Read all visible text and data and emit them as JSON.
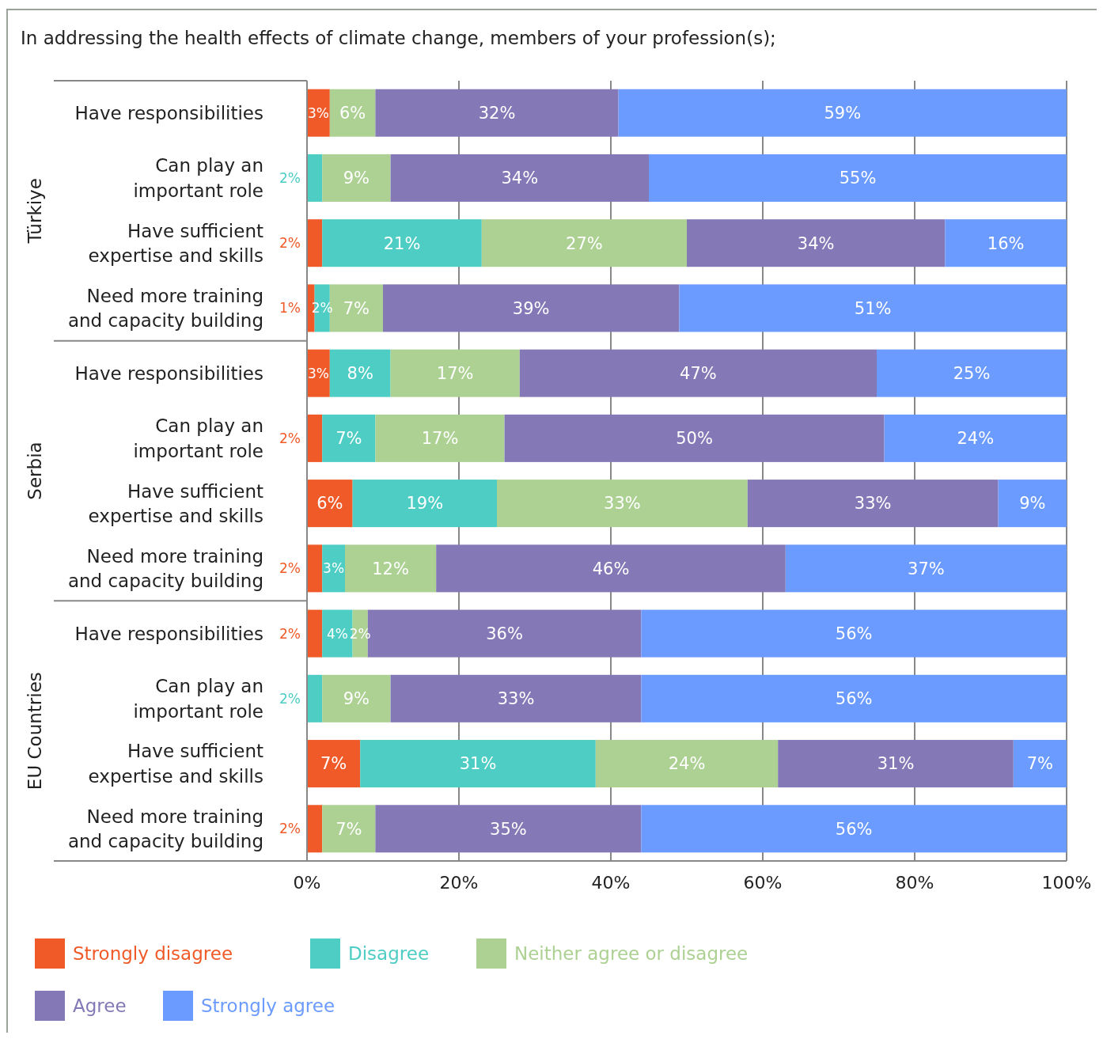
{
  "chart_data": {
    "type": "bar",
    "orientation": "horizontal",
    "stacked": true,
    "title": "In addressing the health effects of climate change, members of your profession(s);",
    "categories": [
      "Have responsibilities",
      "Can play an important role",
      "Have sufficient expertise and skills",
      "Need more training and capacity building",
      "Have responsibilities",
      "Can play an important role",
      "Have sufficient expertise and skills",
      "Need more training and capacity building",
      "Have responsibilities",
      "Can play an important role",
      "Have sufficient expertise and skills",
      "Need more training and capacity building"
    ],
    "annotations": [
      "Türkiye",
      "Serbia",
      "EU Countries"
    ],
    "series": [
      {
        "name": "Strongly disagree",
        "color": "#f05a28",
        "values": [
          3,
          null,
          2,
          1,
          3,
          2,
          6,
          2,
          2,
          null,
          7,
          2
        ],
        "value_labels": [
          "3%",
          null,
          "2%",
          "1%",
          "3%",
          "2%",
          "6%",
          "2%",
          "2%",
          null,
          "7%",
          "2%"
        ]
      },
      {
        "name": "Disagree",
        "color": "#4ecdc4",
        "values": [
          null,
          2,
          21,
          2,
          8,
          7,
          19,
          3,
          4,
          2,
          31,
          null
        ],
        "value_labels": [
          null,
          "2%",
          "21%",
          "2%",
          "8%",
          "7%",
          "19%",
          "3%",
          "4%",
          "2%",
          "31%",
          null
        ]
      },
      {
        "name": "Neither agree or disagree",
        "color": "#acd193",
        "values": [
          6,
          9,
          27,
          7,
          17,
          17,
          33,
          12,
          2,
          9,
          24,
          7
        ],
        "value_labels": [
          "6%",
          "9%",
          "27%",
          "7%",
          "17%",
          "17%",
          "33%",
          "12%",
          "2%",
          "9%",
          "24%",
          "7%"
        ]
      },
      {
        "name": "Agree",
        "color": "#8479b6",
        "values": [
          32,
          34,
          34,
          39,
          47,
          50,
          33,
          46,
          36,
          33,
          31,
          35
        ],
        "value_labels": [
          "32%",
          "34%",
          "34%",
          "39%",
          "47%",
          "50%",
          "33%",
          "46%",
          "36%",
          "33%",
          "31%",
          "35%"
        ]
      },
      {
        "name": "Strongly agree",
        "color": "#6b9bff",
        "values": [
          59,
          55,
          16,
          51,
          25,
          24,
          9,
          37,
          56,
          56,
          7,
          56
        ],
        "value_labels": [
          "59%",
          "55%",
          "16%",
          "51%",
          "25%",
          "24%",
          "9%",
          "37%",
          "56%",
          "56%",
          "7%",
          "56%"
        ]
      }
    ],
    "xlim": [
      0,
      100
    ],
    "xticks": [
      {
        "value": 0,
        "label": "0%"
      },
      {
        "value": 20,
        "label": "20%"
      },
      {
        "value": 40,
        "label": "40%"
      },
      {
        "value": 60,
        "label": "60%"
      },
      {
        "value": 80,
        "label": "80%"
      },
      {
        "value": 100,
        "label": "100%"
      }
    ],
    "grid": "x",
    "legend": "bottom"
  }
}
